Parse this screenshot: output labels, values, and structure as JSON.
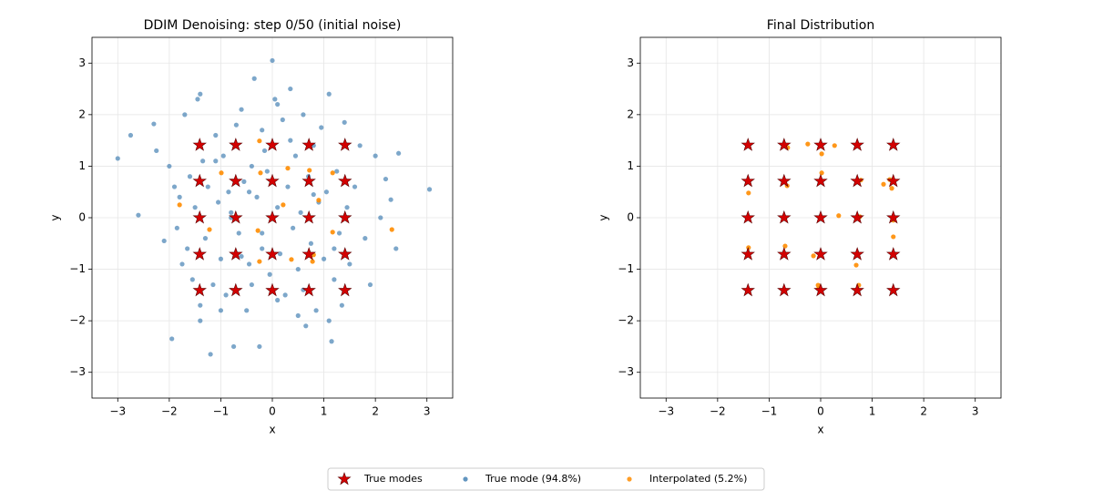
{
  "chart_data": [
    {
      "type": "scatter",
      "title": "DDIM Denoising: step 0/50 (initial noise)",
      "xlabel": "x",
      "ylabel": "y",
      "xlim": [
        -3.5,
        3.5
      ],
      "ylim": [
        -3.5,
        3.5
      ],
      "grid": true,
      "legend": "lower center",
      "xticks": [
        {
          "value": -3,
          "label": "−3"
        },
        {
          "value": -2,
          "label": "−2"
        },
        {
          "value": -1,
          "label": "−1"
        },
        0,
        1,
        2,
        3
      ],
      "yticks": [
        {
          "value": -3,
          "label": "−3"
        },
        {
          "value": -2,
          "label": "−2"
        },
        {
          "value": -1,
          "label": "−1"
        },
        0,
        1,
        2,
        3
      ],
      "series": [
        {
          "name": "True modes",
          "color": "#d40000",
          "marker": "star",
          "x": [
            -1.41,
            -0.71,
            0,
            0.71,
            1.41,
            -1.41,
            -0.71,
            0,
            0.71,
            1.41,
            -1.41,
            -0.71,
            0,
            0.71,
            1.41,
            -1.41,
            -0.71,
            0,
            0.71,
            1.41,
            -1.41,
            -0.71,
            0,
            0.71,
            1.41
          ],
          "y": [
            1.41,
            1.41,
            1.41,
            1.41,
            1.41,
            0.71,
            0.71,
            0.71,
            0.71,
            0.71,
            0,
            0,
            0,
            0,
            0,
            -0.71,
            -0.71,
            -0.71,
            -0.71,
            -0.71,
            -1.41,
            -1.41,
            -1.41,
            -1.41,
            -1.41
          ]
        },
        {
          "name": "True mode (94.8%)",
          "color": "#4682b4",
          "marker": "circle",
          "x": [
            -3.0,
            -2.75,
            -2.6,
            -2.3,
            -2.25,
            -2.1,
            -2.0,
            -1.95,
            -1.9,
            -1.85,
            -1.8,
            -1.75,
            -1.7,
            -1.65,
            -1.6,
            -1.55,
            -1.5,
            -1.45,
            -1.4,
            -1.35,
            -1.3,
            -1.25,
            -1.2,
            -1.15,
            -1.1,
            -1.05,
            -1.0,
            -0.95,
            -0.9,
            -0.85,
            -0.8,
            -0.75,
            -0.7,
            -0.65,
            -0.6,
            -0.55,
            -0.5,
            -0.45,
            -0.4,
            -0.35,
            -0.3,
            -0.25,
            -0.2,
            -0.15,
            -0.1,
            -0.05,
            0.0,
            0.05,
            0.1,
            0.15,
            0.2,
            0.25,
            0.3,
            0.35,
            0.4,
            0.45,
            0.5,
            0.55,
            0.6,
            0.65,
            0.7,
            0.75,
            0.8,
            0.85,
            0.9,
            0.95,
            1.0,
            1.05,
            1.1,
            1.15,
            1.2,
            1.25,
            1.3,
            1.35,
            1.4,
            1.45,
            1.5,
            1.6,
            1.7,
            1.8,
            1.9,
            2.0,
            2.1,
            2.2,
            2.3,
            2.4,
            2.45,
            3.05,
            -1.4,
            -1.4,
            -0.2,
            -0.2,
            0.1,
            0.1,
            -0.4,
            -0.45,
            0.35,
            0.5,
            -1.0,
            -1.1,
            0.6,
            0.8,
            -0.6,
            -0.8,
            1.1,
            1.2
          ],
          "y": [
            1.15,
            1.6,
            0.05,
            1.82,
            1.3,
            -0.45,
            1.0,
            -2.35,
            0.6,
            -0.2,
            0.4,
            -0.9,
            2.0,
            -0.6,
            0.8,
            -1.2,
            0.2,
            2.3,
            -1.7,
            1.1,
            -0.4,
            0.6,
            -2.65,
            -1.3,
            1.6,
            0.3,
            -0.8,
            1.2,
            -1.5,
            0.5,
            0.1,
            -2.5,
            1.8,
            -0.3,
            2.1,
            0.7,
            -1.8,
            -0.9,
            1.0,
            2.7,
            0.4,
            -2.5,
            -0.6,
            1.3,
            0.9,
            -1.1,
            3.05,
            2.3,
            0.2,
            -0.7,
            1.9,
            -1.5,
            0.6,
            2.5,
            -0.2,
            1.2,
            -1.0,
            0.1,
            2.0,
            -2.1,
            0.8,
            -0.5,
            1.4,
            -1.8,
            0.3,
            1.75,
            -0.8,
            0.5,
            2.4,
            -2.4,
            -1.2,
            0.9,
            -0.3,
            -1.7,
            1.85,
            0.2,
            -0.9,
            0.6,
            1.4,
            -0.4,
            -1.3,
            1.2,
            0.0,
            0.75,
            0.35,
            -0.6,
            1.25,
            0.55,
            2.4,
            -2.0,
            -0.3,
            1.7,
            -1.6,
            2.2,
            -1.3,
            0.5,
            1.5,
            -1.9,
            -1.8,
            1.1,
            -1.4,
            0.45,
            -0.75,
            0.0,
            -2.0,
            -0.6
          ]
        },
        {
          "name": "Interpolated (5.2%)",
          "color": "#ff8c00",
          "marker": "circle",
          "x": [
            -0.25,
            -0.99,
            -0.23,
            0.3,
            0.72,
            1.17,
            -1.8,
            -1.22,
            -0.28,
            -0.25,
            0.37,
            0.78,
            0.9,
            2.32,
            1.17,
            0.21,
            0.8
          ],
          "y": [
            1.49,
            0.87,
            0.87,
            0.96,
            0.92,
            0.87,
            0.25,
            -0.23,
            -0.25,
            -0.85,
            -0.81,
            -0.85,
            0.34,
            -0.23,
            -0.28,
            0.25,
            -0.72
          ]
        }
      ]
    },
    {
      "type": "scatter",
      "title": "Final Distribution",
      "xlabel": "x",
      "ylabel": "y",
      "xlim": [
        -3.5,
        3.5
      ],
      "ylim": [
        -3.5,
        3.5
      ],
      "grid": true,
      "xticks": [
        {
          "value": -3,
          "label": "−3"
        },
        {
          "value": -2,
          "label": "−2"
        },
        {
          "value": -1,
          "label": "−1"
        },
        0,
        1,
        2,
        3
      ],
      "yticks": [
        {
          "value": -3,
          "label": "−3"
        },
        {
          "value": -2,
          "label": "−2"
        },
        {
          "value": -1,
          "label": "−1"
        },
        0,
        1,
        2,
        3
      ],
      "series": [
        {
          "color": "#d40000",
          "marker": "star",
          "x": [
            -1.41,
            -0.71,
            0,
            0.71,
            1.41,
            -1.41,
            -0.71,
            0,
            0.71,
            1.41,
            -1.41,
            -0.71,
            0,
            0.71,
            1.41,
            -1.41,
            -0.71,
            0,
            0.71,
            1.41,
            -1.41,
            -0.71,
            0,
            0.71,
            1.41
          ],
          "y": [
            1.41,
            1.41,
            1.41,
            1.41,
            1.41,
            0.71,
            0.71,
            0.71,
            0.71,
            0.71,
            0,
            0,
            0,
            0,
            0,
            -0.71,
            -0.71,
            -0.71,
            -0.71,
            -0.71,
            -1.41,
            -1.41,
            -1.41,
            -1.41,
            -1.41
          ]
        },
        {
          "color": "#4682b4",
          "marker": "circle",
          "x": [
            -1.41,
            -0.71,
            0,
            0.71,
            1.41,
            -1.41,
            -0.71,
            0,
            0.71,
            1.41,
            -1.41,
            -0.71,
            0,
            0.71,
            1.41,
            -1.41,
            -0.71,
            0,
            0.71,
            1.41,
            -1.41,
            -0.71,
            0,
            0.71,
            1.41
          ],
          "y": [
            1.41,
            1.41,
            1.41,
            1.41,
            1.41,
            0.71,
            0.71,
            0.71,
            0.71,
            0.71,
            0,
            0,
            0,
            0,
            0,
            -0.71,
            -0.71,
            -0.71,
            -0.71,
            -0.71,
            -1.41,
            -1.41,
            -1.41,
            -1.41,
            -1.41
          ]
        },
        {
          "color": "#ff8c00",
          "marker": "circle",
          "x": [
            -1.4,
            -1.4,
            -0.69,
            -0.65,
            -0.64,
            -0.25,
            0.27,
            0.02,
            0.02,
            0.35,
            -0.14,
            -0.05,
            -0.04,
            0.69,
            0.74,
            1.22,
            1.34,
            1.38,
            1.41,
            1.41,
            0.76,
            0.78
          ],
          "y": [
            0.48,
            -0.58,
            -0.55,
            0.62,
            1.36,
            1.43,
            1.4,
            1.24,
            0.87,
            0.04,
            -0.74,
            -1.31,
            -1.38,
            -0.92,
            -1.31,
            0.65,
            0.74,
            0.57,
            -0.37,
            -0.05,
            0.02,
            0.73
          ]
        }
      ]
    }
  ]
}
